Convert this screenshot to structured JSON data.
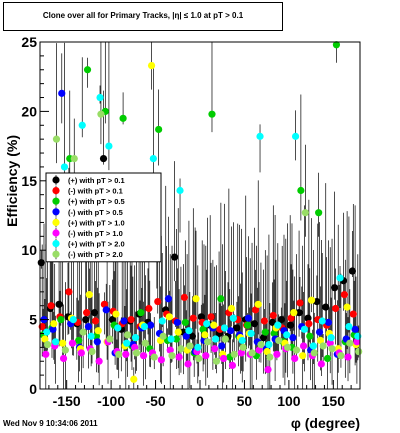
{
  "title": "Clone  over all for Primary Tracks, |η| ≤ 1.0 at pT > 0.1",
  "footer_timestamp": "Wed Nov  9 10:34:06 2011",
  "chart_data": {
    "type": "scatter",
    "xlabel": "φ (degree)",
    "ylabel": "Efficiency (%)",
    "xlim": [
      -180,
      180
    ],
    "ylim": [
      0,
      25
    ],
    "x_ticks": [
      -150,
      -100,
      -50,
      0,
      50,
      100,
      150
    ],
    "y_ticks": [
      0,
      5,
      10,
      15,
      20,
      25
    ],
    "grid": false,
    "legend_position": "left-middle",
    "series": [
      {
        "name": "(+) with pT > 0.1",
        "color": "#000000",
        "x": [
          -175,
          -165,
          -155,
          -145,
          -135,
          -125,
          -115,
          -105,
          -95,
          -85,
          -75,
          -65,
          -55,
          -45,
          -35,
          -25,
          -15,
          -5,
          5,
          15,
          25,
          35,
          45,
          55,
          65,
          75,
          85,
          95,
          105,
          115,
          125,
          135,
          145,
          155,
          165,
          175
        ],
        "y": [
          9.1,
          5.8,
          6.1,
          5.2,
          4.7,
          5.0,
          5.5,
          16.6,
          5.0,
          4.3,
          4.9,
          5.4,
          4.8,
          9.4,
          5.7,
          9.5,
          4.1,
          3.8,
          5.2,
          4.6,
          4.0,
          3.8,
          4.4,
          5.0,
          4.7,
          3.7,
          4.8,
          5.0,
          4.6,
          5.5,
          5.1,
          6.3,
          5.9,
          7.3,
          7.8,
          8.5
        ]
      },
      {
        "name": "(-) with pT > 0.1",
        "color": "#ff0000",
        "x": [
          -175,
          -165,
          -155,
          -145,
          -135,
          -125,
          -115,
          -105,
          -95,
          -85,
          -75,
          -65,
          -55,
          -45,
          -35,
          -25,
          -15,
          -5,
          5,
          15,
          25,
          35,
          45,
          55,
          65,
          75,
          85,
          95,
          105,
          115,
          125,
          135,
          145,
          155,
          165,
          175
        ],
        "y": [
          4.5,
          6.0,
          5.2,
          7.0,
          4.8,
          5.5,
          4.9,
          6.1,
          5.6,
          4.7,
          5.0,
          4.5,
          5.8,
          6.3,
          5.4,
          4.9,
          6.6,
          5.1,
          4.8,
          5.2,
          4.3,
          5.5,
          5.0,
          4.6,
          5.7,
          4.9,
          5.3,
          4.4,
          5.1,
          6.2,
          4.7,
          5.0,
          4.6,
          5.8,
          6.8,
          5.4
        ]
      },
      {
        "name": "(+) with pT > 0.5",
        "color": "#00cc00",
        "x": [
          -175,
          -165,
          -155,
          -145,
          -135,
          -125,
          -115,
          -105,
          -95,
          -85,
          -75,
          -65,
          -55,
          -45,
          -35,
          -25,
          -15,
          -5,
          5,
          15,
          25,
          35,
          45,
          55,
          65,
          75,
          85,
          95,
          105,
          115,
          125,
          135,
          145,
          155,
          165,
          175
        ],
        "y": [
          3.9,
          4.4,
          5.0,
          16.6,
          3.5,
          23.0,
          3.8,
          20.0,
          4.6,
          19.5,
          3.1,
          5.5,
          2.9,
          18.7,
          3.5,
          3.6,
          4.8,
          2.6,
          4.3,
          19.8,
          6.5,
          2.3,
          3.8,
          4.6,
          2.4,
          4.1,
          4.0,
          3.4,
          3.0,
          14.3,
          3.8,
          12.7,
          2.2,
          24.8,
          3.4,
          3.9
        ]
      },
      {
        "name": "(-) with pT > 0.5",
        "color": "#0000ff",
        "x": [
          -175,
          -165,
          -155,
          -145,
          -135,
          -125,
          -115,
          -105,
          -95,
          -85,
          -75,
          -65,
          -55,
          -45,
          -35,
          -25,
          -15,
          -5,
          5,
          15,
          25,
          35,
          45,
          55,
          65,
          75,
          85,
          95,
          105,
          115,
          125,
          135,
          145,
          155,
          165,
          175
        ],
        "y": [
          5.0,
          4.3,
          21.3,
          4.7,
          3.0,
          4.5,
          3.4,
          5.7,
          2.6,
          4.9,
          3.2,
          4.4,
          4.6,
          4.0,
          6.5,
          4.8,
          3.8,
          2.7,
          3.5,
          4.4,
          3.1,
          4.2,
          3.9,
          5.1,
          3.4,
          2.9,
          3.6,
          4.2,
          3.7,
          4.5,
          2.8,
          4.1,
          4.8,
          2.5,
          3.6,
          4.3
        ]
      },
      {
        "name": "(+) with pT > 1.0",
        "color": "#ffff00",
        "x": [
          -175,
          -165,
          -155,
          -145,
          -135,
          -125,
          -115,
          -105,
          -95,
          -85,
          -75,
          -65,
          -55,
          -45,
          -35,
          -25,
          -15,
          -5,
          5,
          15,
          25,
          35,
          45,
          55,
          65,
          75,
          85,
          95,
          105,
          115,
          125,
          135,
          145,
          155,
          165,
          175
        ],
        "y": [
          3.6,
          4.7,
          3.3,
          5.1,
          2.9,
          6.8,
          4.2,
          3.4,
          5.4,
          3.1,
          0.7,
          4.6,
          23.3,
          3.5,
          5.2,
          4.1,
          2.8,
          6.5,
          3.9,
          4.6,
          2.5,
          5.8,
          3.7,
          4.0,
          6.1,
          2.7,
          4.4,
          3.3,
          5.5,
          2.4,
          6.4,
          3.5,
          4.0,
          2.9,
          5.9,
          3.2
        ]
      },
      {
        "name": "(-) with pT > 1.0",
        "color": "#ff00ff",
        "x": [
          -175,
          -165,
          -155,
          -145,
          -135,
          -125,
          -115,
          -105,
          -95,
          -85,
          -75,
          -65,
          -55,
          -45,
          -35,
          -25,
          -15,
          -5,
          5,
          15,
          25,
          35,
          45,
          55,
          65,
          75,
          85,
          95,
          105,
          115,
          125,
          135,
          145,
          155,
          165,
          175
        ],
        "y": [
          2.5,
          3.1,
          2.2,
          3.3,
          2.6,
          2.9,
          2.0,
          3.4,
          2.7,
          2.5,
          3.0,
          2.4,
          2.6,
          2.1,
          2.8,
          2.3,
          1.8,
          2.7,
          2.4,
          2.9,
          2.2,
          1.7,
          2.6,
          2.5,
          2.8,
          1.4,
          2.5,
          2.9,
          2.2,
          3.1,
          2.4,
          1.8,
          3.3,
          2.6,
          2.3,
          3.4
        ]
      },
      {
        "name": "(+) with pT > 2.0",
        "color": "#00ffff",
        "x": [
          -175,
          -165,
          -155,
          -145,
          -135,
          -125,
          -115,
          -105,
          -95,
          -85,
          -75,
          -65,
          -55,
          -45,
          -35,
          -25,
          -15,
          -5,
          5,
          15,
          25,
          35,
          45,
          55,
          65,
          75,
          85,
          95,
          105,
          115,
          125,
          135,
          145,
          155,
          165,
          175
        ],
        "y": [
          4.1,
          3.4,
          16.0,
          5.0,
          19.0,
          3.8,
          21.0,
          17.5,
          4.4,
          3.3,
          3.7,
          4.5,
          16.6,
          4.9,
          3.6,
          14.3,
          4.2,
          3.0,
          4.7,
          3.6,
          4.4,
          5.1,
          3.5,
          4.0,
          18.2,
          3.2,
          4.6,
          3.9,
          18.2,
          4.3,
          3.1,
          4.9,
          3.7,
          8.0,
          4.5,
          3.8
        ]
      },
      {
        "name": "(-) with pT > 2.0",
        "color": "#99dd66",
        "x": [
          -175,
          -165,
          -155,
          -145,
          -135,
          -125,
          -115,
          -105,
          -95,
          -85,
          -75,
          -65,
          -55,
          -45,
          -35,
          -25,
          -15,
          -5,
          5,
          15,
          25,
          35,
          45,
          55,
          65,
          75,
          85,
          95,
          105,
          115,
          125,
          135,
          145,
          155,
          165,
          175
        ],
        "y": [
          3.2,
          18.0,
          2.8,
          16.6,
          4.1,
          2.7,
          19.8,
          3.6,
          2.5,
          3.9,
          2.6,
          3.3,
          2.3,
          3.8,
          2.4,
          2.9,
          3.1,
          2.2,
          3.4,
          2.0,
          3.6,
          2.5,
          3.0,
          2.6,
          3.2,
          2.3,
          3.5,
          3.0,
          2.8,
          12.7,
          2.6,
          3.1,
          2.9,
          2.4,
          3.3,
          2.7
        ]
      }
    ]
  }
}
